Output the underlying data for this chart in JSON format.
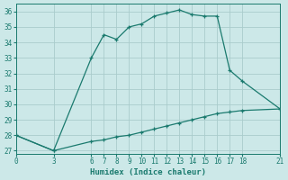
{
  "xlabel": "Humidex (Indice chaleur)",
  "ylabel": "",
  "background_color": "#cce8e8",
  "grid_color": "#aacccc",
  "line_color": "#1a7a6e",
  "xlim": [
    0,
    21
  ],
  "ylim": [
    26.8,
    36.5
  ],
  "xticks": [
    0,
    3,
    6,
    7,
    8,
    9,
    10,
    11,
    12,
    13,
    14,
    15,
    16,
    17,
    18,
    21
  ],
  "yticks": [
    27,
    28,
    29,
    30,
    31,
    32,
    33,
    34,
    35,
    36
  ],
  "line1_x": [
    0,
    3,
    6,
    7,
    8,
    9,
    10,
    11,
    12,
    13,
    14,
    15,
    16,
    17,
    18,
    21
  ],
  "line1_y": [
    28.0,
    27.0,
    33.0,
    34.5,
    34.2,
    35.0,
    35.2,
    35.7,
    35.9,
    36.1,
    35.8,
    35.7,
    35.7,
    32.2,
    31.5,
    29.7
  ],
  "line2_x": [
    0,
    3,
    6,
    7,
    8,
    9,
    10,
    11,
    12,
    13,
    14,
    15,
    16,
    17,
    18,
    21
  ],
  "line2_y": [
    28.0,
    27.0,
    27.6,
    27.7,
    27.9,
    28.0,
    28.2,
    28.4,
    28.6,
    28.8,
    29.0,
    29.2,
    29.4,
    29.5,
    29.6,
    29.7
  ],
  "title_fontsize": 7,
  "axis_fontsize": 6.5,
  "tick_fontsize": 5.5
}
